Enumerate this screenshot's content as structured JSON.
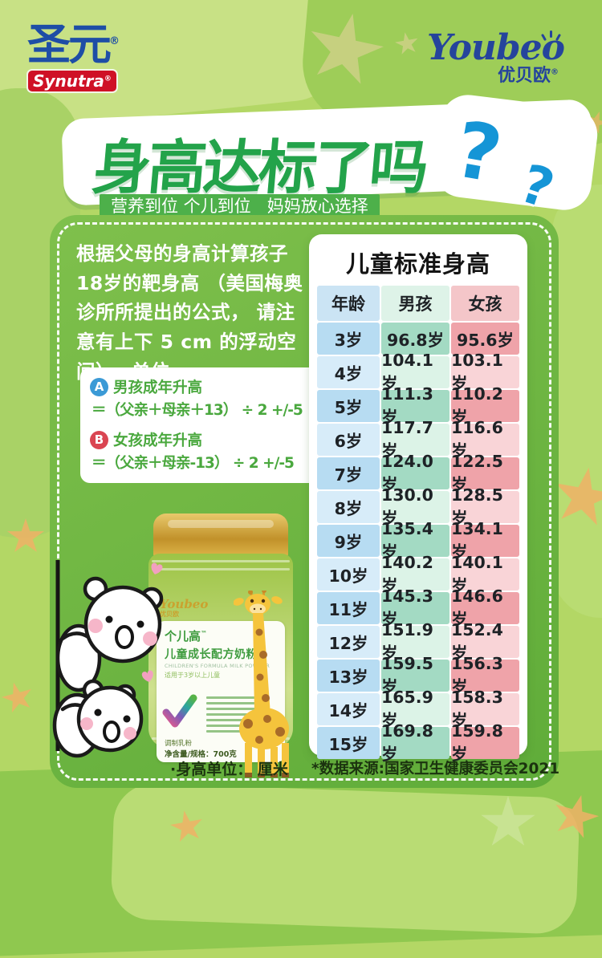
{
  "brand": {
    "synutra": {
      "cn": "圣元",
      "reg": "®",
      "en": "Synutra"
    },
    "youbeo": {
      "en": "Youbeo",
      "cn": "优贝欧",
      "reg": "®"
    }
  },
  "hero": {
    "title": "身高达标了吗",
    "qmark1": "?",
    "qmark2": "?",
    "subtitle": "营养到位 个儿到位   妈妈放心选择"
  },
  "intro_paragraph": "根据父母的身高计算孩子\n18岁的靶身高 （美国梅奥\n诊所所提出的公式， 请注\n意有上下 5 cm 的浮动空\n间）， 单位cm",
  "formula_card": {
    "items": [
      {
        "badge": "A",
        "name": "男孩成年升高",
        "expr": "＝（父亲＋母亲＋13） ÷ 2 +/-5"
      },
      {
        "badge": "B",
        "name": "女孩成年升高",
        "expr": "＝（父亲＋母亲-13） ÷ 2 +/-5"
      }
    ]
  },
  "height_table": {
    "title": "儿童标准身高",
    "columns": [
      "年龄",
      "男孩",
      "女孩"
    ],
    "rows": [
      [
        "3岁",
        "96.8岁",
        "95.6岁"
      ],
      [
        "4岁",
        "104.1岁",
        "103.1岁"
      ],
      [
        "5岁",
        "111.3岁",
        "110.2岁"
      ],
      [
        "6岁",
        "117.7岁",
        "116.6岁"
      ],
      [
        "7岁",
        "124.0岁",
        "122.5岁"
      ],
      [
        "8岁",
        "130.0岁",
        "128.5岁"
      ],
      [
        "9岁",
        "135.4岁",
        "134.1岁"
      ],
      [
        "10岁",
        "140.2岁",
        "140.1岁"
      ],
      [
        "11岁",
        "145.3岁",
        "146.6岁"
      ],
      [
        "12岁",
        "151.9岁",
        "152.4岁"
      ],
      [
        "13岁",
        "159.5岁",
        "156.3岁"
      ],
      [
        "14岁",
        "165.9岁",
        "158.3岁"
      ],
      [
        "15岁",
        "169.8岁",
        "159.8岁"
      ]
    ]
  },
  "product_can": {
    "brand_en": "Youbeo",
    "brand_cn": "优贝欧",
    "name": "个儿高",
    "tm": "™",
    "desc": "儿童成长配方奶粉",
    "desc_en": "CHILDREN'S FORMULA MILK POWDER",
    "suitable": "适用于3岁以上儿童",
    "type": "调制乳粉",
    "net": "净含量/规格：700克"
  },
  "footnotes": {
    "unit": "·身高单位： 厘米",
    "source": "*数据来源:国家卫生健康委员会2021"
  },
  "colors": {
    "background_green": "#b3d765",
    "panel_green": "#6db63f",
    "title_green": "#23a34a",
    "subtitle_green": "#4db04a",
    "question_blue": "#1595d6",
    "brand_blue": "#1e4ea6",
    "brand_red": "#cf1126",
    "youbeo_blue": "#25449c",
    "badge_a_blue": "#3b9ad6",
    "badge_b_red": "#da4552",
    "col_age_blue": "#b7dcf2",
    "col_boy_teal": "#a3dac3",
    "col_girl_pink": "#efa3a9"
  }
}
